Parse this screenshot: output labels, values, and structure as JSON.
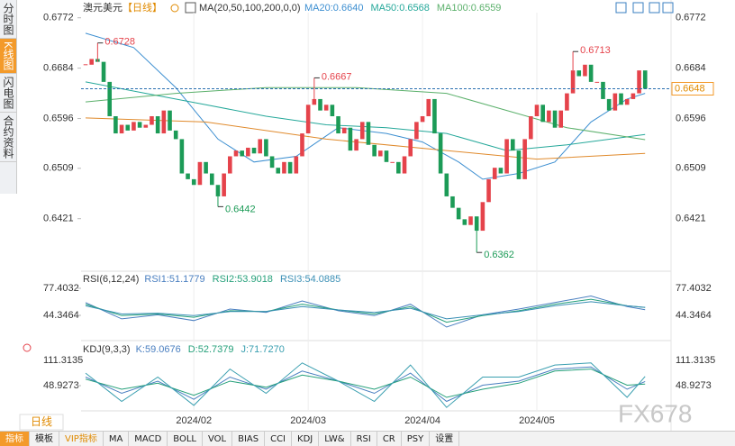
{
  "sidebar": {
    "tabs": [
      "分时图",
      "K线图",
      "闪电图",
      "合约资料"
    ],
    "active": 1
  },
  "header": {
    "symbol": "澳元美元",
    "period": "【日线】",
    "ma_label": "MA(20,50,100,200,0,0)"
  },
  "period_button": "日线",
  "watermark": "FX678",
  "toolbar": {
    "items": [
      "指标",
      "模板",
      "VIP指标",
      "MA",
      "MACD",
      "BOLL",
      "VOL",
      "BIAS",
      "CCI",
      "KDJ",
      "LW&",
      "RSI",
      "CR",
      "PSY",
      "设置"
    ],
    "active": 0,
    "highlight": 2
  },
  "chart_data": [
    {
      "type": "candlestick",
      "categories": [
        null,
        null,
        null,
        null,
        null,
        null,
        null,
        null,
        null,
        null,
        null,
        null,
        null,
        null,
        null,
        null,
        null,
        null,
        "2024/02",
        null,
        null,
        null,
        null,
        null,
        null,
        null,
        null,
        null,
        null,
        null,
        null,
        null,
        null,
        null,
        null,
        null,
        null,
        "2024/03",
        null,
        null,
        null,
        null,
        null,
        null,
        null,
        null,
        null,
        null,
        null,
        null,
        null,
        null,
        null,
        null,
        null,
        null,
        "2024/04",
        null,
        null,
        null,
        null,
        null,
        null,
        null,
        null,
        null,
        null,
        null,
        null,
        null,
        null,
        null,
        null,
        null,
        null,
        "2024/05",
        null,
        null,
        null,
        null,
        null,
        null,
        null,
        null,
        null,
        null,
        null,
        null,
        null,
        null,
        null,
        null,
        null,
        null
      ],
      "close": [
        0.669,
        0.67,
        0.6695,
        0.666,
        0.66,
        0.657,
        0.6585,
        0.6575,
        0.659,
        0.658,
        0.6585,
        0.66,
        0.657,
        0.661,
        0.6575,
        0.656,
        0.65,
        0.649,
        0.648,
        0.652,
        0.65,
        0.648,
        0.646,
        0.65,
        0.653,
        0.654,
        0.653,
        0.6545,
        0.6535,
        0.656,
        0.653,
        0.651,
        0.65,
        0.652,
        0.65,
        0.653,
        0.657,
        0.662,
        0.663,
        0.661,
        0.662,
        0.66,
        0.657,
        0.658,
        0.654,
        0.656,
        0.659,
        0.655,
        0.653,
        0.654,
        0.652,
        0.652,
        0.65,
        0.653,
        0.656,
        0.659,
        0.66,
        0.663,
        0.657,
        0.65,
        0.646,
        0.644,
        0.642,
        0.641,
        0.6425,
        0.64,
        0.645,
        0.649,
        0.651,
        0.65,
        0.656,
        0.654,
        0.649,
        0.656,
        0.66,
        0.662,
        0.659,
        0.661,
        0.658,
        0.661,
        0.664,
        0.668,
        0.667,
        0.669,
        0.666,
        0.666,
        0.663,
        0.661,
        0.664,
        0.662,
        0.663,
        0.664,
        0.668,
        0.6648
      ],
      "up_color": "#e5434b",
      "down_color": "#1c9b57",
      "ylim": [
        0.6334,
        0.6781
      ],
      "yticks": [
        0.6772,
        0.6684,
        0.6596,
        0.6509,
        0.6421
      ],
      "last_price": 0.6648,
      "extremes": [
        {
          "index": 2,
          "value": 0.6728
        },
        {
          "index": 38,
          "value": 0.6667
        },
        {
          "index": 81,
          "value": 0.6713
        },
        {
          "index": 22,
          "value": 0.6442
        },
        {
          "index": 65,
          "value": 0.6362
        }
      ],
      "series": [
        {
          "name": "MA20:0.6640",
          "color": "#3d8fd1",
          "x": [
            0,
            8,
            15,
            22,
            28,
            35,
            42,
            50,
            56,
            62,
            66,
            72,
            78,
            84,
            90,
            93
          ],
          "values": [
            0.6745,
            0.672,
            0.665,
            0.656,
            0.652,
            0.653,
            0.658,
            0.657,
            0.6555,
            0.652,
            0.649,
            0.65,
            0.652,
            0.659,
            0.663,
            0.664
          ]
        },
        {
          "name": "MA50:0.6568",
          "color": "#25a89a",
          "x": [
            0,
            10,
            20,
            30,
            40,
            50,
            60,
            70,
            80,
            93
          ],
          "values": [
            0.666,
            0.664,
            0.662,
            0.66,
            0.6585,
            0.658,
            0.657,
            0.654,
            0.655,
            0.6568
          ]
        },
        {
          "name": "MA100:0.6559",
          "color": "#5bb06b",
          "x": [
            0,
            15,
            30,
            45,
            60,
            70,
            80,
            93
          ],
          "values": [
            0.6625,
            0.664,
            0.665,
            0.665,
            0.664,
            0.661,
            0.658,
            0.6559
          ]
        },
        {
          "color": "#e08a2c",
          "x": [
            0,
            20,
            40,
            60,
            75,
            93
          ],
          "values": [
            0.6597,
            0.659,
            0.656,
            0.654,
            0.6525,
            0.6535
          ]
        }
      ]
    },
    {
      "type": "line",
      "title": "RSI(6,12,24)",
      "ylim": [
        15.7,
        93.9
      ],
      "yticks": [
        77.4032,
        44.3464
      ],
      "x": [
        0,
        6,
        12,
        18,
        24,
        30,
        36,
        42,
        48,
        54,
        60,
        66,
        72,
        78,
        84,
        90,
        93
      ],
      "series": [
        {
          "name": "RSI1:51.1779",
          "color": "#4a7fc0",
          "values": [
            60,
            40,
            45,
            38,
            52,
            48,
            62,
            50,
            44,
            58,
            30,
            45,
            52,
            60,
            68,
            55,
            51.1779
          ]
        },
        {
          "name": "RSI2:53.9018",
          "color": "#25a07a",
          "values": [
            58,
            44,
            46,
            42,
            50,
            49,
            58,
            51,
            46,
            55,
            36,
            44,
            50,
            58,
            64,
            56,
            53.9018
          ]
        },
        {
          "name": "RSI3:54.0885",
          "color": "#3a8fb5",
          "values": [
            56,
            46,
            47,
            44,
            49,
            49,
            55,
            51,
            48,
            53,
            40,
            45,
            49,
            56,
            61,
            56,
            54.0885
          ]
        }
      ]
    },
    {
      "type": "line",
      "title": "KDJ(9,3,3)",
      "ylim": [
        -6.8,
        149.2
      ],
      "yticks": [
        111.3135,
        48.9273
      ],
      "x": [
        0,
        6,
        12,
        18,
        24,
        30,
        36,
        42,
        48,
        54,
        60,
        66,
        72,
        78,
        84,
        90,
        93
      ],
      "series": [
        {
          "name": "K:59.0676",
          "color": "#4a7fc0",
          "values": [
            70,
            30,
            60,
            15,
            70,
            40,
            85,
            60,
            30,
            80,
            10,
            50,
            60,
            90,
            95,
            40,
            59.0676
          ]
        },
        {
          "name": "D:52.7379",
          "color": "#25a07a",
          "values": [
            65,
            40,
            55,
            25,
            60,
            45,
            75,
            60,
            40,
            70,
            20,
            40,
            55,
            85,
            90,
            50,
            52.7379
          ]
        },
        {
          "name": "J:71.7270",
          "color": "#3a9fb0",
          "values": [
            80,
            10,
            70,
            0,
            90,
            30,
            105,
            60,
            10,
            100,
            -5,
            70,
            70,
            100,
            105,
            20,
            71.727
          ]
        }
      ]
    }
  ]
}
